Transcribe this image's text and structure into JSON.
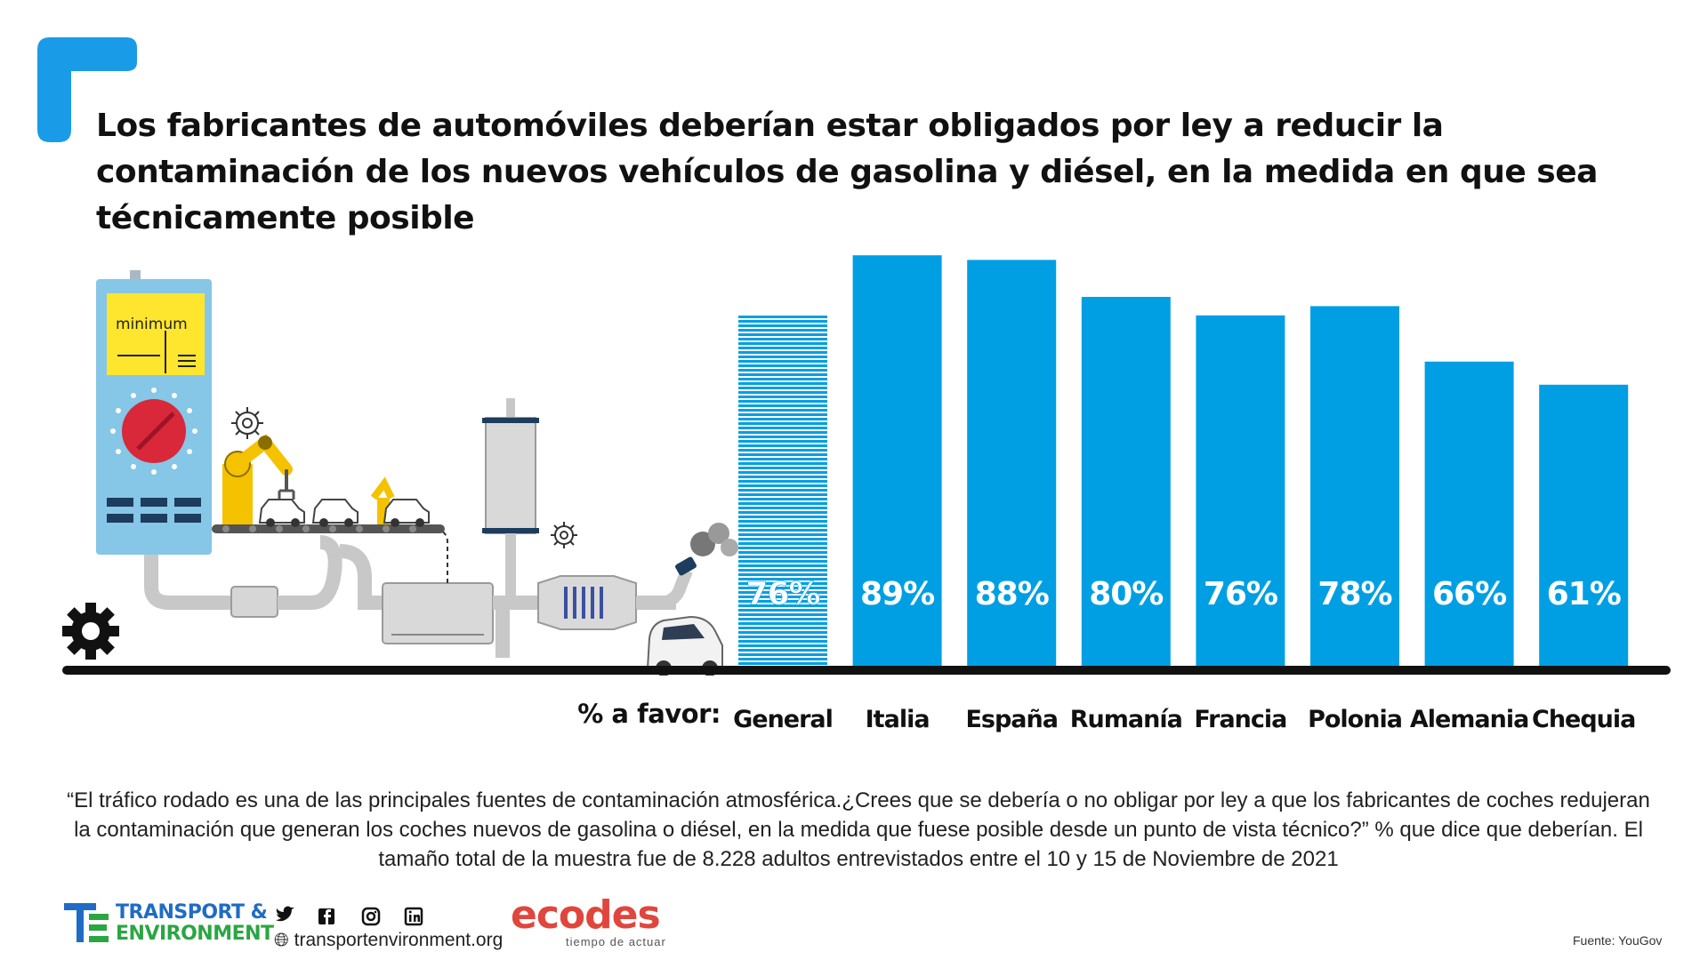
{
  "title": "Los fabricantes de automóviles deberían estar obligados por ley a reducir la contaminación de los nuevos vehículos de gasolina y diésel, en la medida en que sea técnicamente posible",
  "illustration": {
    "panel_label": "minimum",
    "icons": [
      "gear-icon",
      "robot-arm-icon",
      "car-icon",
      "exhaust-pipe-icon",
      "catalytic-converter-icon"
    ]
  },
  "chart_data": {
    "type": "bar",
    "categories": [
      "General",
      "Italia",
      "España",
      "Rumanía",
      "Francia",
      "Polonia",
      "Alemania",
      "Chequia"
    ],
    "values": [
      76,
      89,
      88,
      80,
      76,
      78,
      66,
      61
    ],
    "value_labels": [
      "76%",
      "89%",
      "88%",
      "80%",
      "76%",
      "78%",
      "66%",
      "61%"
    ],
    "highlight": {
      "category": "General",
      "pattern": "striped"
    },
    "unit": "%",
    "x_prefix": "% a favor:",
    "title": "",
    "xlabel": "",
    "ylabel": "",
    "ylim": [
      0,
      100
    ],
    "grid": false,
    "legend": "none"
  },
  "colors": {
    "bar": "#009fe3",
    "accent": "#1a9be8",
    "axis": "#111111",
    "te_blue": "#1f6cc4",
    "te_green": "#2aa642",
    "ecodes_red": "#e0463d"
  },
  "note": "“El tráfico rodado es una de las principales fuentes de contaminación atmosférica.¿Crees que se debería o no obligar por ley a que los fabricantes de coches redujeran la contaminación que generan los coches nuevos de gasolina o diésel, en la medida que fuese posible desde un punto de vista técnico?” % que dice que deberían. El tamaño total de la muestra fue de 8.228 adultos entrevistados entre el 10 y 15 de Noviembre de 2021",
  "footer": {
    "te_line1": "TRANSPORT &",
    "te_line2": "ENVIRONMENT",
    "social_icons": [
      "twitter-icon",
      "facebook-icon",
      "instagram-icon",
      "linkedin-icon"
    ],
    "website": "transportenvironment.org",
    "ecodes_name": "ecodes",
    "ecodes_tagline": "tiempo de actuar",
    "source": "Fuente: YouGov"
  }
}
